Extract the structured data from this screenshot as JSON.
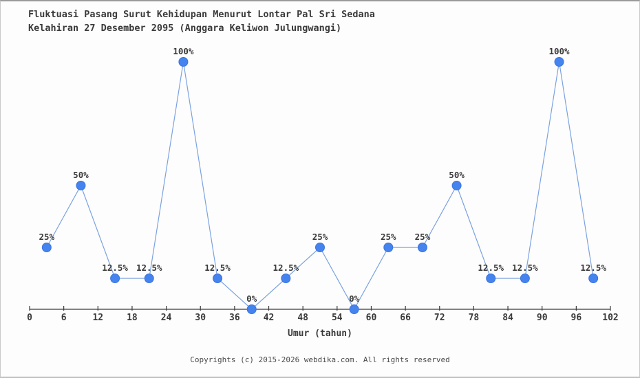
{
  "page": {
    "background_color": "#fdfdfd",
    "frame_border_color": "#c0c0c0"
  },
  "chart_data": {
    "type": "line",
    "title_line1": "Fluktuasi Pasang Surut Kehidupan Menurut Lontar Pal Sri Sedana",
    "title_line2": "Kelahiran 27 Desember 2095 (Anggara Keliwon Julungwangi)",
    "xlabel": "Umur (tahun)",
    "x": [
      3,
      9,
      15,
      21,
      27,
      33,
      39,
      45,
      51,
      57,
      63,
      69,
      75,
      81,
      87,
      93,
      99
    ],
    "values": [
      25,
      50,
      12.5,
      12.5,
      100,
      12.5,
      0,
      12.5,
      25,
      0,
      25,
      25,
      50,
      12.5,
      12.5,
      100,
      12.5
    ],
    "point_labels": [
      "25%",
      "50%",
      "12.5%",
      "12.5%",
      "100%",
      "12.5%",
      "0%",
      "12.5%",
      "25%",
      "0%",
      "25%",
      "25%",
      "50%",
      "12.5%",
      "12.5%",
      "100%",
      "12.5%"
    ],
    "x_ticks": [
      0,
      6,
      12,
      18,
      24,
      30,
      36,
      42,
      48,
      54,
      60,
      66,
      72,
      78,
      84,
      90,
      96,
      102
    ],
    "xlim": [
      0,
      102
    ],
    "ylim": [
      0,
      100
    ],
    "grid": false,
    "legend_position": "none",
    "line_color": "#7aa2e0",
    "marker_color": "#4583ee",
    "marker_edge_color": "#3a74e0",
    "axis_color": "#3a3a3a",
    "label_color": "#3a3a3a"
  },
  "footer": {
    "copyright": "Copyrights (c) 2015-2026 webdika.com. All rights reserved"
  }
}
